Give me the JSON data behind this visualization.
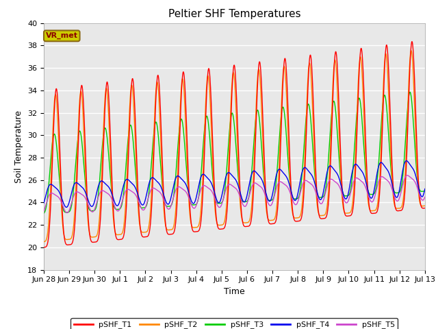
{
  "title": "Peltier SHF Temperatures",
  "xlabel": "Time",
  "ylabel": "Soil Temperature",
  "ylim": [
    18,
    40
  ],
  "yticks": [
    18,
    20,
    22,
    24,
    26,
    28,
    30,
    32,
    34,
    36,
    38,
    40
  ],
  "colors": {
    "T1": "#ff0000",
    "T2": "#ff8800",
    "T3": "#00cc00",
    "T4": "#0000ee",
    "T5": "#cc44cc"
  },
  "legend_labels": [
    "pSHF_T1",
    "pSHF_T2",
    "pSHF_T3",
    "pSHF_T4",
    "pSHF_T5"
  ],
  "annotation_text": "VR_met",
  "annotation_bg": "#cccc00",
  "annotation_border": "#8B6914",
  "plot_bg": "#e8e8e8",
  "title_fontsize": 11,
  "axis_fontsize": 9,
  "tick_fontsize": 8,
  "linewidth": 1.0
}
